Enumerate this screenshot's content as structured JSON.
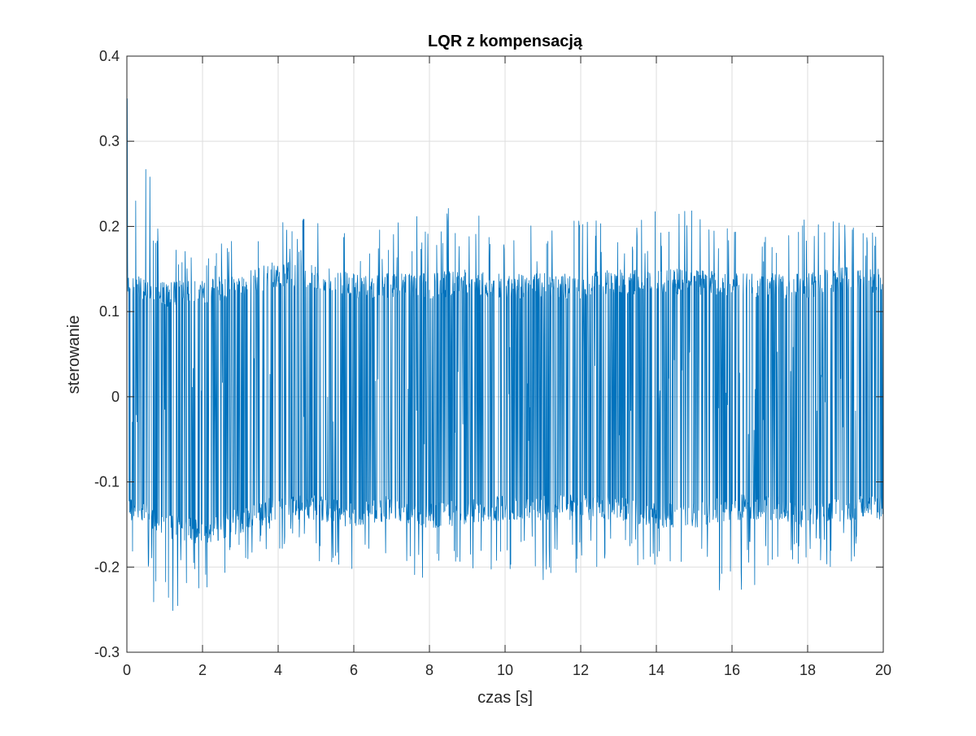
{
  "chart_data": {
    "type": "line",
    "title": "LQR z kompensacją",
    "xlabel": "czas [s]",
    "ylabel": "sterowanie",
    "xlim": [
      0,
      20
    ],
    "ylim": [
      -0.3,
      0.4
    ],
    "xticks": [
      0,
      2,
      4,
      6,
      8,
      10,
      12,
      14,
      16,
      18,
      20
    ],
    "yticks": [
      -0.3,
      -0.2,
      -0.1,
      0,
      0.1,
      0.2,
      0.3,
      0.4
    ],
    "xtick_labels": [
      "0",
      "2",
      "4",
      "6",
      "8",
      "10",
      "12",
      "14",
      "16",
      "18",
      "20"
    ],
    "ytick_labels": [
      "-0.3",
      "-0.2",
      "-0.1",
      "0",
      "0.1",
      "0.2",
      "0.3",
      "0.4"
    ],
    "grid": true,
    "series": [
      {
        "color": "#0072BD",
        "description_of_values": "Densely switching control signal oscillating between about -0.2 and 0.2 over 0-20 s; initial spike to about 0.35 at t≈0.02 s; bands concentrated near ±0.13 to ±0.15 with spikes up to ≈0.225 and down to ≈-0.26",
        "envelope": {
          "t": [
            0,
            1,
            2,
            3,
            4,
            5,
            6,
            7,
            8,
            9,
            10,
            11,
            12,
            13,
            14,
            15,
            16,
            17,
            18,
            19,
            20
          ],
          "upper_band": [
            0.13,
            0.12,
            0.125,
            0.13,
            0.145,
            0.14,
            0.13,
            0.13,
            0.13,
            0.135,
            0.13,
            0.13,
            0.13,
            0.135,
            0.135,
            0.135,
            0.13,
            0.13,
            0.13,
            0.14,
            0.135
          ],
          "lower_band": [
            -0.13,
            -0.15,
            -0.16,
            -0.145,
            -0.13,
            -0.13,
            -0.14,
            -0.13,
            -0.14,
            -0.135,
            -0.13,
            -0.13,
            -0.13,
            -0.13,
            -0.14,
            -0.14,
            -0.13,
            -0.13,
            -0.14,
            -0.13,
            -0.13
          ],
          "max_peaks": [
            0.35,
            0.2,
            0.175,
            0.2,
            0.21,
            0.21,
            0.2,
            0.205,
            0.225,
            0.22,
            0.21,
            0.2,
            0.21,
            0.205,
            0.22,
            0.22,
            0.2,
            0.2,
            0.22,
            0.205,
            0.2
          ],
          "min_peaks": [
            -0.21,
            -0.26,
            -0.23,
            -0.2,
            -0.18,
            -0.2,
            -0.21,
            -0.21,
            -0.22,
            -0.21,
            -0.2,
            -0.22,
            -0.21,
            -0.21,
            -0.2,
            -0.21,
            -0.24,
            -0.21,
            -0.2,
            -0.2,
            -0.19
          ]
        }
      }
    ]
  }
}
